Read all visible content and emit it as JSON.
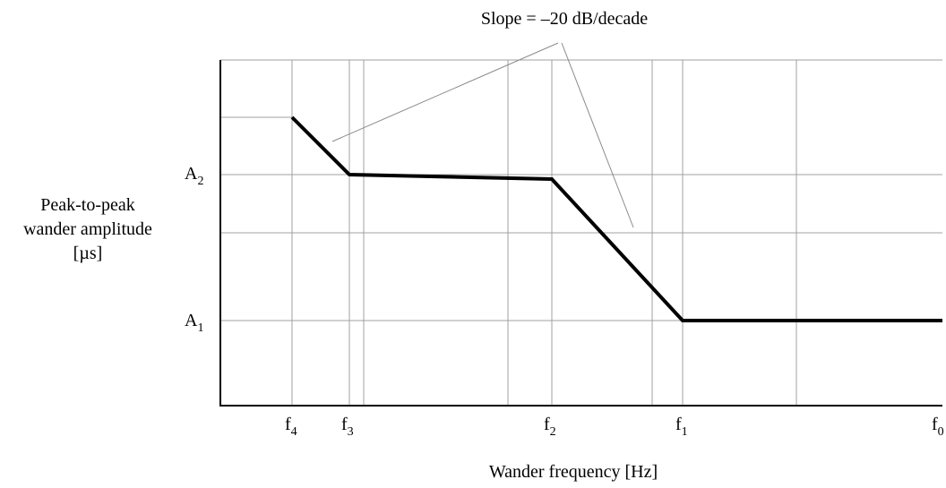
{
  "chart_data": {
    "type": "line",
    "title": "",
    "xlabel": "Wander frequency [Hz]",
    "ylabel_lines": [
      "Peak-to-peak",
      "wander amplitude",
      "[µs]"
    ],
    "annotation": "Slope = –20 dB/decade",
    "x_ticks": [
      {
        "base": "f",
        "sub": "4"
      },
      {
        "base": "f",
        "sub": "3"
      },
      {
        "base": "f",
        "sub": "2"
      },
      {
        "base": "f",
        "sub": "1"
      },
      {
        "base": "f",
        "sub": "0"
      }
    ],
    "y_ticks": [
      {
        "base": "A",
        "sub": "2"
      },
      {
        "base": "A",
        "sub": "1"
      }
    ],
    "series": [
      {
        "points": [
          {
            "x": "f4",
            "y": "above A2"
          },
          {
            "x": "f3",
            "y": "A2"
          },
          {
            "x": "f2",
            "y": "A2"
          },
          {
            "x": "f1",
            "y": "A1"
          },
          {
            "x": "f0",
            "y": "A1"
          }
        ]
      }
    ],
    "grid": true,
    "line_color": "#000000",
    "grid_color": "#a0a0a0"
  }
}
